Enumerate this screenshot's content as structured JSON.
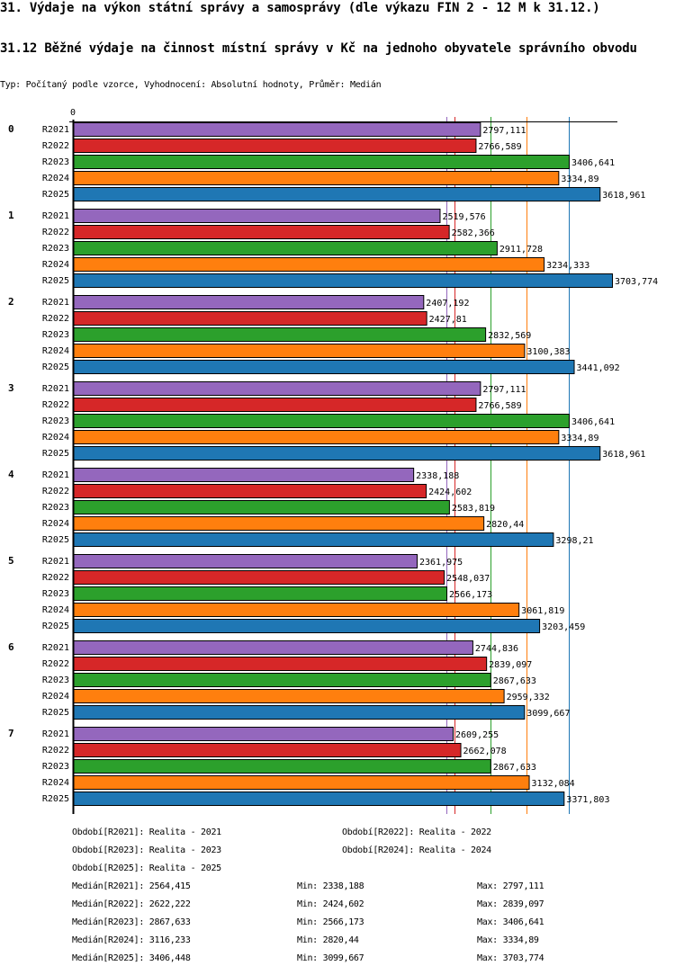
{
  "header": {
    "title": "31. Výdaje na výkon státní správy a samosprávy (dle výkazu FIN 2 - 12 M k 31.12.)",
    "subtitle": "31.12 Běžné výdaje na činnost místní správy v Kč na jednoho obyvatele správního obvodu",
    "info": "Typ: Počítaný podle vzorce, Vyhodnocení: Absolutní hodnoty, Průměr: Medián"
  },
  "chart_data": {
    "type": "bar",
    "orientation": "horizontal",
    "title": "31.12 Běžné výdaje na činnost místní správy v Kč na jednoho obyvatele správního obvodu",
    "xlabel": "",
    "ylabel": "",
    "x_tick_labels": [
      "0"
    ],
    "xlim": [
      0,
      3703.774
    ],
    "grid": false,
    "legend_position": "bottom",
    "categories": [
      "0",
      "1",
      "2",
      "3",
      "4",
      "5",
      "6",
      "7"
    ],
    "series": [
      {
        "name": "R2021",
        "color": "#9467bd",
        "values": [
          2797.111,
          2519.576,
          2407.192,
          2797.111,
          2338.188,
          2361.975,
          2744.836,
          2609.255
        ],
        "labels": [
          "2797,111",
          "2519,576",
          "2407,192",
          "2797,111",
          "2338,188",
          "2361,975",
          "2744,836",
          "2609,255"
        ]
      },
      {
        "name": "R2022",
        "color": "#d62728",
        "values": [
          2766.589,
          2582.366,
          2427.81,
          2766.589,
          2424.602,
          2548.037,
          2839.097,
          2662.078
        ],
        "labels": [
          "2766,589",
          "2582,366",
          "2427,81",
          "2766,589",
          "2424,602",
          "2548,037",
          "2839,097",
          "2662,078"
        ]
      },
      {
        "name": "R2023",
        "color": "#2ca02c",
        "values": [
          3406.641,
          2911.728,
          2832.569,
          3406.641,
          2583.819,
          2566.173,
          2867.633,
          2867.633
        ],
        "labels": [
          "3406,641",
          "2911,728",
          "2832,569",
          "3406,641",
          "2583,819",
          "2566,173",
          "2867,633",
          "2867,633"
        ]
      },
      {
        "name": "R2024",
        "color": "#ff7f0e",
        "values": [
          3334.89,
          3234.333,
          3100.383,
          3334.89,
          2820.44,
          3061.819,
          2959.332,
          3132.084
        ],
        "labels": [
          "3334,89",
          "3234,333",
          "3100,383",
          "3334,89",
          "2820,44",
          "3061,819",
          "2959,332",
          "3132,084"
        ]
      },
      {
        "name": "R2025",
        "color": "#1f77b4",
        "values": [
          3618.961,
          3703.774,
          3441.092,
          3618.961,
          3298.21,
          3203.459,
          3099.667,
          3371.803
        ],
        "labels": [
          "3618,961",
          "3703,774",
          "3441,092",
          "3618,961",
          "3298,21",
          "3203,459",
          "3099,667",
          "3371,803"
        ]
      }
    ],
    "medians": [
      {
        "series": "R2021",
        "value": 2564.415
      },
      {
        "series": "R2022",
        "value": 2622.222
      },
      {
        "series": "R2023",
        "value": 2867.633
      },
      {
        "series": "R2024",
        "value": 3116.233
      },
      {
        "series": "R2025",
        "value": 3406.448
      }
    ]
  },
  "legend": [
    "Období[R2021]: Realita - 2021",
    "Období[R2022]: Realita - 2022",
    "Období[R2023]: Realita - 2023",
    "Období[R2024]: Realita - 2024",
    "Období[R2025]: Realita - 2025"
  ],
  "stats": [
    {
      "median": "Medián[R2021]: 2564,415",
      "min": "Min: 2338,188",
      "max": "Max: 2797,111"
    },
    {
      "median": "Medián[R2022]: 2622,222",
      "min": "Min: 2424,602",
      "max": "Max: 2839,097"
    },
    {
      "median": "Medián[R2023]: 2867,633",
      "min": "Min: 2566,173",
      "max": "Max: 3406,641"
    },
    {
      "median": "Medián[R2024]: 3116,233",
      "min": "Min: 2820,44",
      "max": "Max: 3334,89"
    },
    {
      "median": "Medián[R2025]: 3406,448",
      "min": "Min: 3099,667",
      "max": "Max: 3703,774"
    }
  ]
}
